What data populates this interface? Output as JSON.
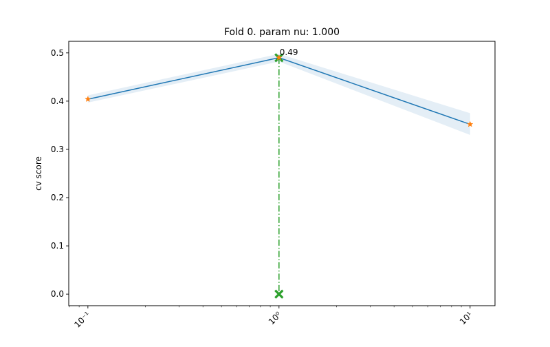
{
  "chart_data": {
    "type": "line",
    "title": "Fold 0. param nu: 1.000",
    "xlabel": "",
    "ylabel": "cv score",
    "xscale": "log",
    "xlim": [
      0.0794,
      13.5
    ],
    "ylim": [
      -0.024,
      0.524
    ],
    "grid": false,
    "legend": "none",
    "x": [
      0.1,
      1,
      10
    ],
    "x_tick_labels": [
      "10⁻¹",
      "10⁰",
      "10¹"
    ],
    "y_ticks": [
      0.0,
      0.1,
      0.2,
      0.3,
      0.4,
      0.5
    ],
    "y_tick_labels": [
      "0.0",
      "0.1",
      "0.2",
      "0.3",
      "0.4",
      "0.5"
    ],
    "series": [
      {
        "values": [
          0.404,
          0.49,
          0.352
        ],
        "band_upper": [
          0.412,
          0.498,
          0.375
        ],
        "band_lower": [
          0.397,
          0.482,
          0.33
        ],
        "line_color": "#1f77b4",
        "band_color": "#1f77b4",
        "marker": "star",
        "marker_color": "#ff7f0e"
      }
    ],
    "best": {
      "x": 1,
      "y": 0.49,
      "label": "0.49",
      "color": "#2ca02c",
      "marker": "x"
    }
  }
}
